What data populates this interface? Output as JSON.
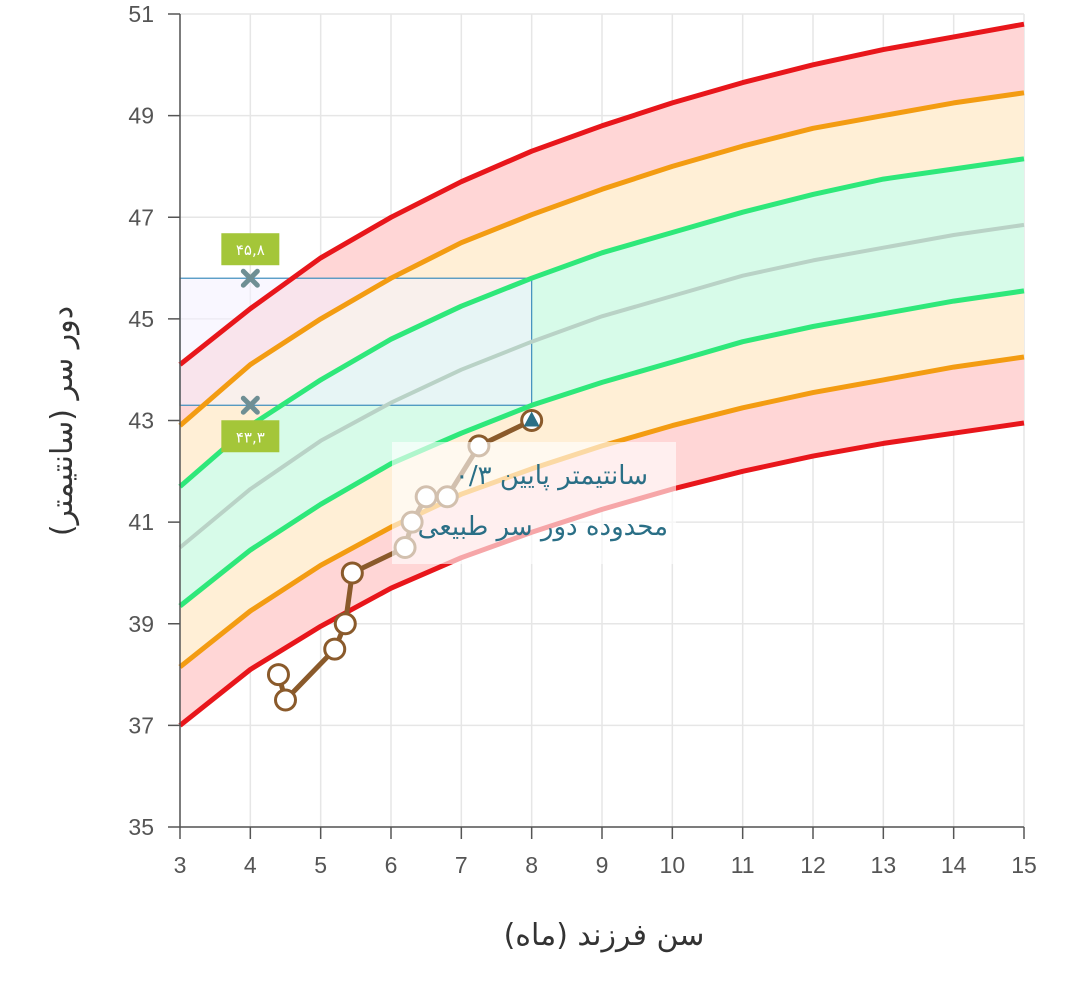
{
  "chart_data": {
    "type": "line",
    "title": "",
    "xlabel": "سن فرزند (ماه)",
    "ylabel": "دور سر (سانتیمتر)",
    "xlim": [
      3,
      15
    ],
    "ylim": [
      35,
      51
    ],
    "x_ticks": [
      3,
      4,
      5,
      6,
      7,
      8,
      9,
      10,
      11,
      12,
      13,
      14,
      15
    ],
    "y_ticks": [
      35,
      37,
      39,
      41,
      43,
      45,
      47,
      49,
      51
    ],
    "grid": true,
    "x": [
      3,
      4,
      5,
      6,
      7,
      8,
      9,
      10,
      11,
      12,
      13,
      14,
      15
    ],
    "percentile_series": [
      {
        "name": "upper-red",
        "color": "#e8161b",
        "values": [
          44.1,
          45.2,
          46.2,
          47.0,
          47.7,
          48.3,
          48.8,
          49.25,
          49.65,
          50.0,
          50.3,
          50.55,
          50.8
        ]
      },
      {
        "name": "upper-orange",
        "color": "#f39c12",
        "values": [
          42.9,
          44.1,
          45.0,
          45.8,
          46.5,
          47.05,
          47.55,
          48.0,
          48.4,
          48.75,
          49.0,
          49.25,
          49.45
        ]
      },
      {
        "name": "upper-green",
        "color": "#2ee87a",
        "values": [
          41.7,
          42.9,
          43.8,
          44.6,
          45.25,
          45.8,
          46.3,
          46.7,
          47.1,
          47.45,
          47.75,
          47.95,
          48.15
        ]
      },
      {
        "name": "median",
        "color": "#b9d2c6",
        "values": [
          40.5,
          41.65,
          42.6,
          43.35,
          44.0,
          44.55,
          45.05,
          45.45,
          45.85,
          46.15,
          46.4,
          46.65,
          46.85
        ]
      },
      {
        "name": "lower-green",
        "color": "#2ee87a",
        "values": [
          39.35,
          40.45,
          41.35,
          42.15,
          42.75,
          43.3,
          43.75,
          44.15,
          44.55,
          44.85,
          45.1,
          45.35,
          45.55
        ]
      },
      {
        "name": "lower-orange",
        "color": "#f39c12",
        "values": [
          38.15,
          39.25,
          40.15,
          40.9,
          41.55,
          42.05,
          42.5,
          42.9,
          43.25,
          43.55,
          43.8,
          44.05,
          44.25
        ]
      },
      {
        "name": "lower-red",
        "color": "#e8161b",
        "values": [
          37.0,
          38.1,
          38.95,
          39.7,
          40.3,
          40.8,
          41.25,
          41.65,
          42.0,
          42.3,
          42.55,
          42.75,
          42.95
        ]
      }
    ],
    "band_fills": {
      "outer": "#ffd6d6",
      "middle": "#ffefd6",
      "inner": "#d7fbe9"
    },
    "child_series": {
      "name": "child",
      "color": "#8a5a2b",
      "points": [
        [
          4.4,
          38.0
        ],
        [
          4.5,
          37.5
        ],
        [
          5.2,
          38.5
        ],
        [
          5.35,
          39.0
        ],
        [
          5.45,
          40.0
        ],
        [
          6.2,
          40.5
        ],
        [
          6.3,
          41.0
        ],
        [
          6.5,
          41.5
        ],
        [
          6.8,
          41.5
        ],
        [
          7.25,
          42.5
        ],
        [
          8.0,
          43.0
        ]
      ]
    },
    "range_box": {
      "x": [
        3,
        8
      ],
      "y": [
        43.3,
        45.8
      ]
    },
    "markers": [
      {
        "x": 4,
        "y": 45.8,
        "label": "۴۵,۸",
        "badge_position": "above"
      },
      {
        "x": 4,
        "y": 43.3,
        "label": "۴۳,۳",
        "badge_position": "below"
      }
    ],
    "annotation": {
      "line1": "۰/۳ سانتیمتر پایین",
      "line2": "محدوده دور سر طبیعی"
    }
  },
  "colors": {
    "grid": "#e6e6e6",
    "axis": "#555555",
    "range_box_stroke": "#3c8dbc",
    "range_box_fill": "#f4f0ff",
    "marker": "#6f8f94",
    "badge": "#a4c639",
    "child_marker_fill": "#ffffff",
    "current_point": "#2a6f86"
  }
}
